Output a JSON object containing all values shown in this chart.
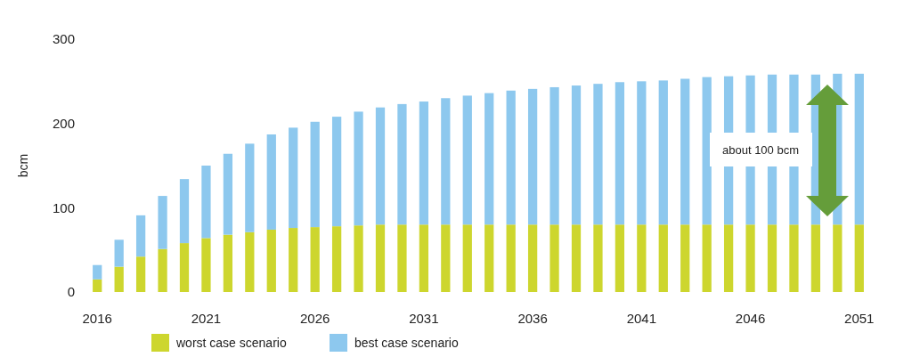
{
  "chart_data": {
    "type": "bar",
    "stacked": true,
    "ylabel": "bcm",
    "categories": [
      "2016",
      null,
      null,
      null,
      null,
      "2021",
      null,
      null,
      null,
      null,
      "2026",
      null,
      null,
      null,
      null,
      "2031",
      null,
      null,
      null,
      null,
      "2036",
      null,
      null,
      null,
      null,
      "2041",
      null,
      null,
      null,
      null,
      "2046",
      null,
      null,
      null,
      null,
      "2051"
    ],
    "series": [
      {
        "name": "worst case scenario",
        "color": "#cdd62e",
        "values": [
          15,
          30,
          42,
          51,
          58,
          64,
          68,
          71,
          74,
          76,
          77,
          78,
          79,
          80,
          80,
          80,
          80,
          80,
          80,
          80,
          80,
          80,
          80,
          80,
          80,
          80,
          80,
          80,
          80,
          80,
          80,
          80,
          80,
          80,
          80,
          80
        ]
      },
      {
        "name": "best case scenario",
        "color": "#8dc8ee",
        "values": [
          17,
          32,
          49,
          63,
          76,
          86,
          96,
          105,
          113,
          119,
          125,
          130,
          135,
          139,
          143,
          146,
          150,
          153,
          156,
          159,
          161,
          163,
          165,
          167,
          169,
          170,
          171,
          173,
          175,
          176,
          177,
          178,
          178,
          178,
          179,
          179
        ]
      }
    ],
    "ylim": [
      0,
      300
    ],
    "yticks": [
      0,
      100,
      200,
      300
    ],
    "grid": false,
    "legend": "bottom",
    "annotations": [
      "about 100 bcm"
    ]
  }
}
